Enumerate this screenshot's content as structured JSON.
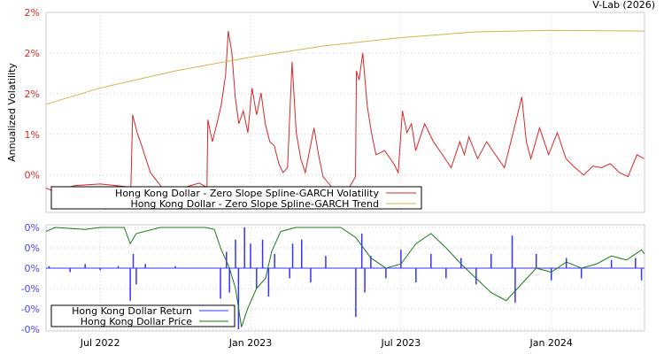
{
  "credit": "V-Lab (2026)",
  "chart_data": [
    {
      "type": "line",
      "title": "",
      "ylabel": "Annualized Volatility",
      "ylim": [
        0.04,
        2.5
      ],
      "xlim": [
        2022.32,
        2024.31
      ],
      "y_ticks": [
        {
          "value": 0.5,
          "label": "0%"
        },
        {
          "value": 1.0,
          "label": "1%"
        },
        {
          "value": 1.5,
          "label": "2%"
        },
        {
          "value": 2.0,
          "label": "2%"
        },
        {
          "value": 2.5,
          "label": "2%"
        }
      ],
      "grid": true,
      "legend_position": "bottom-left",
      "series": [
        {
          "name": "Hong Kong Dollar - Zero Slope Spline-GARCH Volatility",
          "color": "#d62728",
          "points": [
            [
              2022.32,
              0.34
            ],
            [
              2022.344,
              0.3
            ],
            [
              2022.417,
              0.37
            ],
            [
              2022.5,
              0.39
            ],
            [
              2022.602,
              0.35
            ],
            [
              2022.608,
              1.24
            ],
            [
              2022.623,
              1.02
            ],
            [
              2022.638,
              0.86
            ],
            [
              2022.667,
              0.53
            ],
            [
              2022.711,
              0.32
            ],
            [
              2022.755,
              0.32
            ],
            [
              2022.829,
              0.4
            ],
            [
              2022.855,
              0.35
            ],
            [
              2022.858,
              1.18
            ],
            [
              2022.873,
              0.91
            ],
            [
              2022.888,
              1.13
            ],
            [
              2022.902,
              1.35
            ],
            [
              2022.917,
              1.73
            ],
            [
              2022.926,
              2.27
            ],
            [
              2022.938,
              2.0
            ],
            [
              2022.949,
              1.46
            ],
            [
              2022.961,
              1.13
            ],
            [
              2022.976,
              1.29
            ],
            [
              2022.991,
              1.02
            ],
            [
              2023.005,
              1.57
            ],
            [
              2023.02,
              1.24
            ],
            [
              2023.035,
              1.51
            ],
            [
              2023.049,
              1.13
            ],
            [
              2023.064,
              0.91
            ],
            [
              2023.079,
              0.86
            ],
            [
              2023.094,
              0.64
            ],
            [
              2023.108,
              0.53
            ],
            [
              2023.123,
              0.59
            ],
            [
              2023.138,
              1.89
            ],
            [
              2023.152,
              1.02
            ],
            [
              2023.167,
              0.7
            ],
            [
              2023.182,
              0.53
            ],
            [
              2023.211,
              1.08
            ],
            [
              2023.226,
              0.75
            ],
            [
              2023.241,
              0.48
            ],
            [
              2023.27,
              0.35
            ],
            [
              2023.329,
              0.35
            ],
            [
              2023.349,
              0.48
            ],
            [
              2023.352,
              1.78
            ],
            [
              2023.361,
              1.67
            ],
            [
              2023.373,
              2.0
            ],
            [
              2023.388,
              1.35
            ],
            [
              2023.402,
              1.02
            ],
            [
              2023.417,
              0.75
            ],
            [
              2023.446,
              0.8
            ],
            [
              2023.476,
              0.64
            ],
            [
              2023.491,
              0.53
            ],
            [
              2023.505,
              1.29
            ],
            [
              2023.52,
              1.02
            ],
            [
              2023.535,
              1.13
            ],
            [
              2023.549,
              0.8
            ],
            [
              2023.579,
              1.13
            ],
            [
              2023.608,
              0.91
            ],
            [
              2023.638,
              0.75
            ],
            [
              2023.667,
              0.59
            ],
            [
              2023.696,
              0.91
            ],
            [
              2023.711,
              0.75
            ],
            [
              2023.726,
              0.97
            ],
            [
              2023.755,
              0.7
            ],
            [
              2023.785,
              0.91
            ],
            [
              2023.814,
              0.75
            ],
            [
              2023.844,
              0.59
            ],
            [
              2023.873,
              1.02
            ],
            [
              2023.902,
              1.46
            ],
            [
              2023.917,
              0.91
            ],
            [
              2023.932,
              0.7
            ],
            [
              2023.961,
              1.08
            ],
            [
              2023.991,
              0.75
            ],
            [
              2024.02,
              1.02
            ],
            [
              2024.049,
              0.7
            ],
            [
              2024.079,
              0.59
            ],
            [
              2024.108,
              0.5
            ],
            [
              2024.138,
              0.61
            ],
            [
              2024.167,
              0.59
            ],
            [
              2024.196,
              0.64
            ],
            [
              2024.226,
              0.53
            ],
            [
              2024.255,
              0.48
            ],
            [
              2024.285,
              0.75
            ],
            [
              2024.308,
              0.7
            ]
          ]
        },
        {
          "name": "Hong Kong Dollar - Zero Slope Spline-GARCH Trend",
          "color": "#d4b44a",
          "points": [
            [
              2022.32,
              1.37
            ],
            [
              2022.5,
              1.57
            ],
            [
              2022.75,
              1.78
            ],
            [
              2023.0,
              1.95
            ],
            [
              2023.25,
              2.09
            ],
            [
              2023.5,
              2.19
            ],
            [
              2023.75,
              2.26
            ],
            [
              2024.0,
              2.28
            ],
            [
              2024.31,
              2.27
            ]
          ]
        }
      ]
    },
    {
      "type": "line",
      "ylim": [
        -0.309,
        0.213
      ],
      "xlim": [
        2022.32,
        2024.31
      ],
      "y_ticks": [
        {
          "value": 0.2,
          "label": "0%"
        },
        {
          "value": 0.1,
          "label": "0%"
        },
        {
          "value": 0.0,
          "label": "0%"
        },
        {
          "value": -0.1,
          "label": "-0%"
        },
        {
          "value": -0.2,
          "label": "-0%"
        },
        {
          "value": -0.3,
          "label": "-0%"
        }
      ],
      "x_ticks": [
        {
          "value": 2022.5,
          "label": "Jul 2022"
        },
        {
          "value": 2023.0,
          "label": "Jan 2023"
        },
        {
          "value": 2023.5,
          "label": "Jul 2023"
        },
        {
          "value": 2024.0,
          "label": "Jan 2024"
        }
      ],
      "grid": true,
      "legend_position": "bottom-left",
      "series": [
        {
          "name": "Hong Kong Dollar Return",
          "color": "#3333ff",
          "points": [
            [
              2022.33,
              0.01
            ],
            [
              2022.4,
              -0.02
            ],
            [
              2022.45,
              0.02
            ],
            [
              2022.5,
              -0.01
            ],
            [
              2022.56,
              0.01
            ],
            [
              2022.6,
              -0.16
            ],
            [
              2022.61,
              0.07
            ],
            [
              2022.62,
              -0.08
            ],
            [
              2022.65,
              0.02
            ],
            [
              2022.75,
              0.01
            ],
            [
              2022.9,
              -0.15
            ],
            [
              2022.92,
              0.08
            ],
            [
              2022.93,
              -0.12
            ],
            [
              2022.95,
              0.14
            ],
            [
              2022.96,
              -0.3
            ],
            [
              2022.98,
              0.2
            ],
            [
              2023.0,
              0.12
            ],
            [
              2023.02,
              -0.1
            ],
            [
              2023.04,
              0.14
            ],
            [
              2023.06,
              -0.14
            ],
            [
              2023.08,
              0.07
            ],
            [
              2023.13,
              -0.05
            ],
            [
              2023.14,
              0.12
            ],
            [
              2023.17,
              0.14
            ],
            [
              2023.2,
              -0.07
            ],
            [
              2023.25,
              0.06
            ],
            [
              2023.35,
              -0.24
            ],
            [
              2023.37,
              0.17
            ],
            [
              2023.38,
              -0.12
            ],
            [
              2023.4,
              0.06
            ],
            [
              2023.45,
              -0.05
            ],
            [
              2023.5,
              0.09
            ],
            [
              2023.55,
              -0.07
            ],
            [
              2023.6,
              0.07
            ],
            [
              2023.65,
              -0.05
            ],
            [
              2023.7,
              0.05
            ],
            [
              2023.75,
              -0.08
            ],
            [
              2023.8,
              0.07
            ],
            [
              2023.87,
              0.16
            ],
            [
              2023.88,
              -0.17
            ],
            [
              2023.95,
              0.07
            ],
            [
              2024.0,
              -0.06
            ],
            [
              2024.05,
              0.05
            ],
            [
              2024.1,
              -0.05
            ],
            [
              2024.2,
              0.04
            ],
            [
              2024.28,
              0.05
            ],
            [
              2024.3,
              -0.06
            ]
          ]
        },
        {
          "name": "Hong Kong Dollar Price",
          "color": "#1a7a1a",
          "points": [
            [
              2022.32,
              0.18
            ],
            [
              2022.35,
              0.2
            ],
            [
              2022.45,
              0.19
            ],
            [
              2022.5,
              0.2
            ],
            [
              2022.58,
              0.2
            ],
            [
              2022.6,
              0.12
            ],
            [
              2022.62,
              0.17
            ],
            [
              2022.7,
              0.2
            ],
            [
              2022.85,
              0.2
            ],
            [
              2022.88,
              0.19
            ],
            [
              2022.9,
              0.1
            ],
            [
              2022.93,
              0.0
            ],
            [
              2022.95,
              -0.1
            ],
            [
              2022.97,
              -0.29
            ],
            [
              2022.99,
              -0.2
            ],
            [
              2023.02,
              -0.1
            ],
            [
              2023.05,
              -0.05
            ],
            [
              2023.07,
              0.08
            ],
            [
              2023.1,
              0.18
            ],
            [
              2023.15,
              0.2
            ],
            [
              2023.3,
              0.2
            ],
            [
              2023.35,
              0.15
            ],
            [
              2023.4,
              0.05
            ],
            [
              2023.45,
              0.0
            ],
            [
              2023.5,
              0.02
            ],
            [
              2023.55,
              0.12
            ],
            [
              2023.6,
              0.17
            ],
            [
              2023.65,
              0.1
            ],
            [
              2023.7,
              0.02
            ],
            [
              2023.75,
              -0.05
            ],
            [
              2023.8,
              -0.12
            ],
            [
              2023.85,
              -0.16
            ],
            [
              2023.9,
              -0.08
            ],
            [
              2023.95,
              0.0
            ],
            [
              2024.0,
              -0.02
            ],
            [
              2024.05,
              0.03
            ],
            [
              2024.1,
              0.0
            ],
            [
              2024.15,
              0.02
            ],
            [
              2024.2,
              0.06
            ],
            [
              2024.25,
              0.04
            ],
            [
              2024.3,
              0.09
            ],
            [
              2024.31,
              0.07
            ]
          ]
        }
      ]
    }
  ]
}
